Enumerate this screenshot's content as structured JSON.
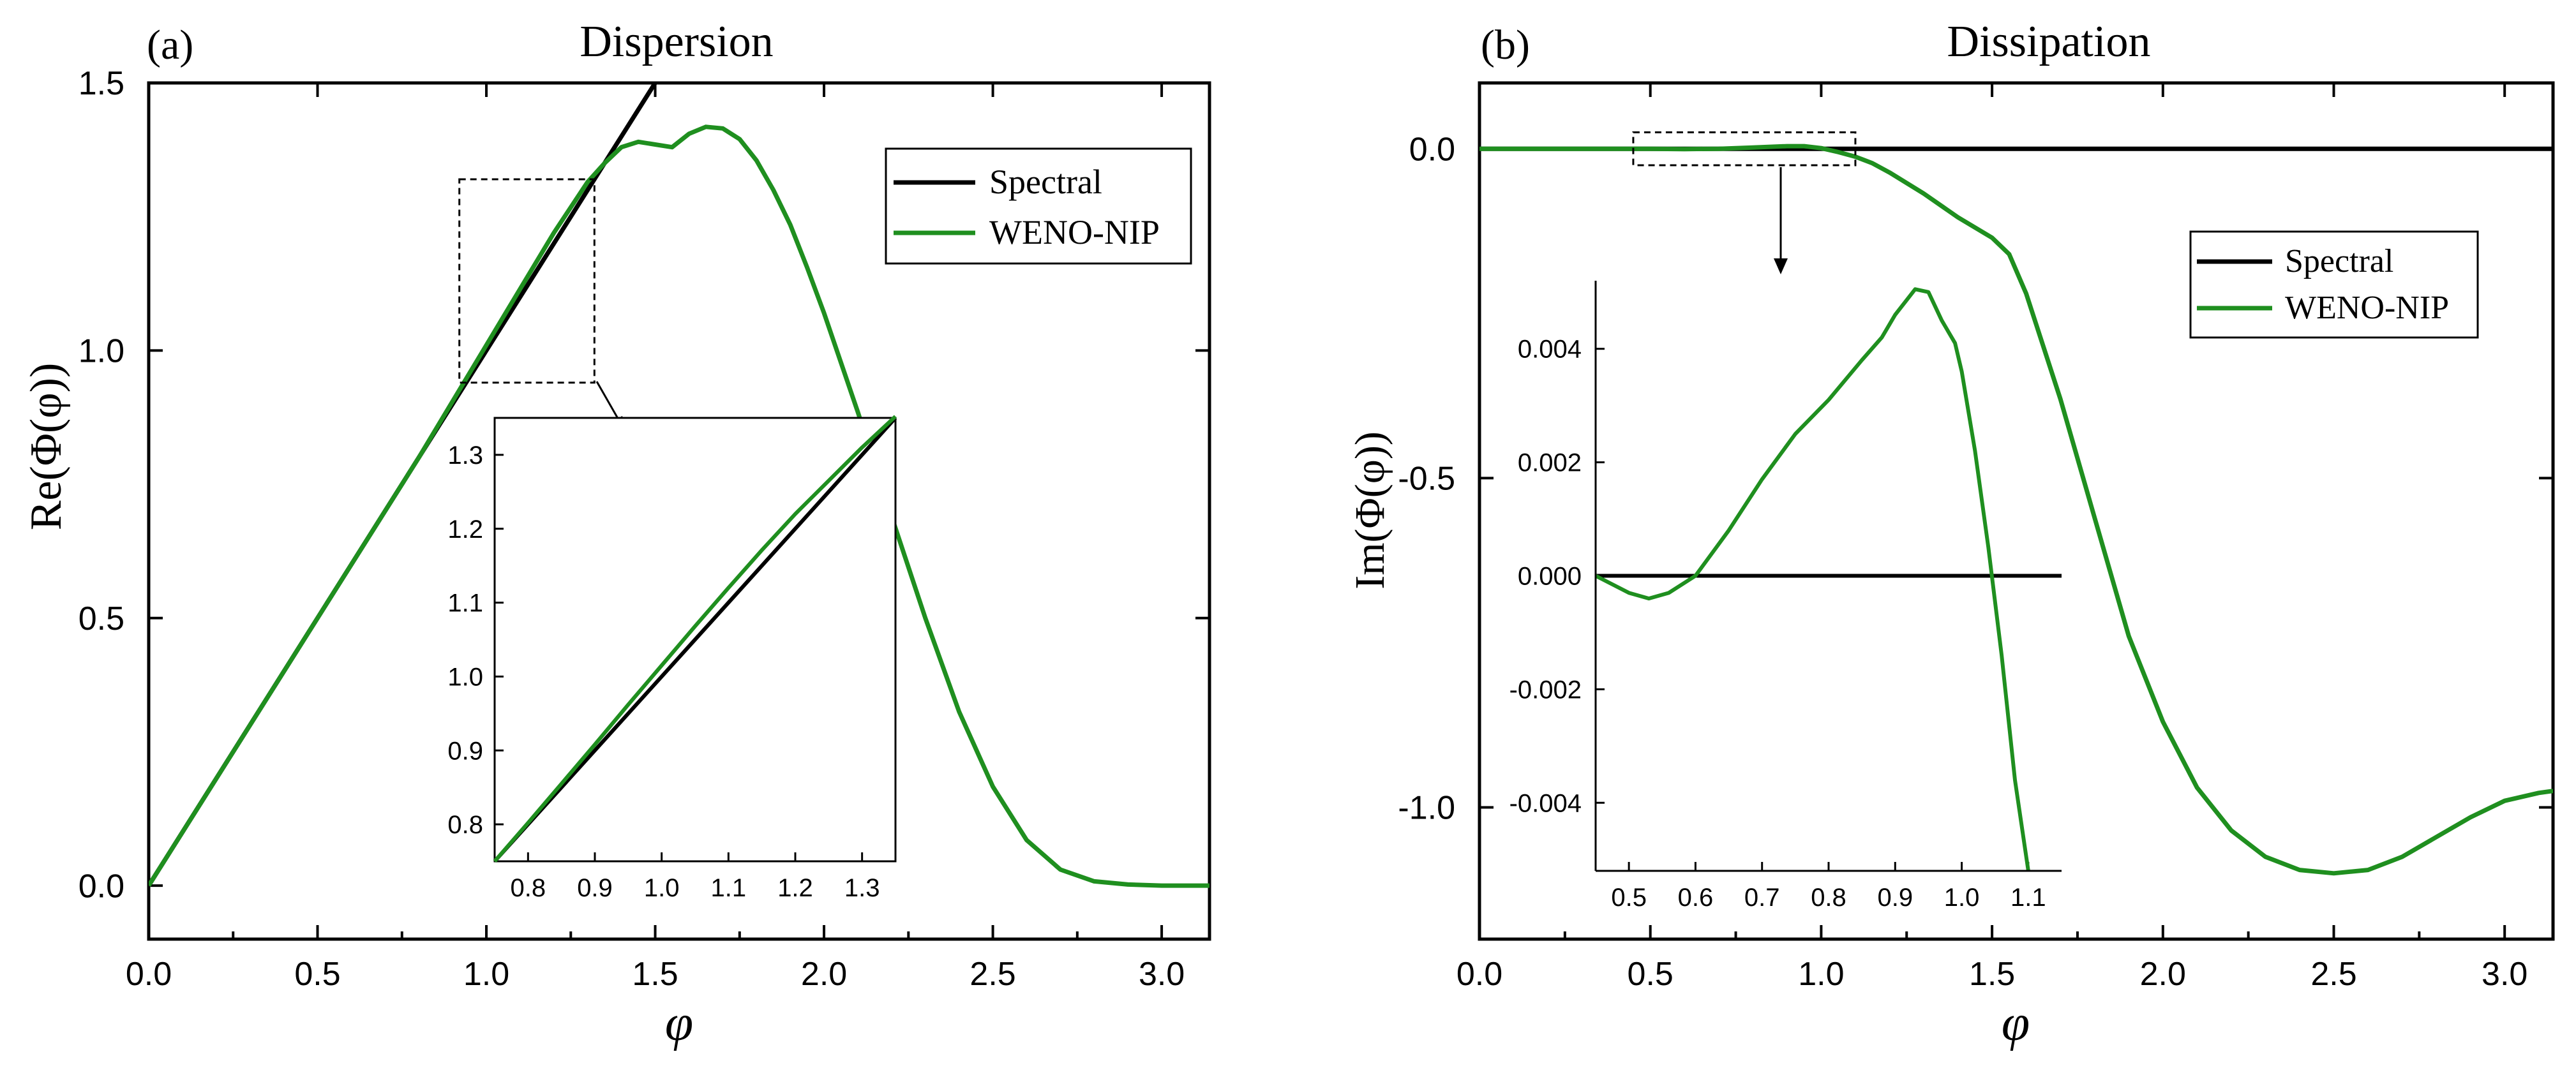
{
  "colors": {
    "spectral": "#000000",
    "weno": "#1f8f1f",
    "axis": "#000000"
  },
  "chart_data": [
    {
      "type": "line",
      "panel_label": "(a)",
      "title": "Dispersion",
      "xlabel": "φ",
      "ylabel": "Re(Φ(φ))",
      "xlim": [
        0,
        3.14159
      ],
      "ylim": [
        -0.1,
        1.5
      ],
      "xticks": [
        0,
        0.5,
        1.0,
        1.5,
        2.0,
        2.5,
        3.0
      ],
      "xtick_labels": [
        "0.0",
        "0.5",
        "1.0",
        "1.5",
        "2.0",
        "2.5",
        "3.0"
      ],
      "yticks": [
        0,
        0.5,
        1.0,
        1.5
      ],
      "ytick_labels": [
        "0.0",
        "0.5",
        "1.0",
        "1.5"
      ],
      "grid": false,
      "legend_position": "top-right",
      "series": [
        {
          "name": "Spectral",
          "color": "#000000",
          "x": [
            0,
            1.5
          ],
          "y": [
            0,
            1.5
          ]
        },
        {
          "name": "WENO-NIP",
          "color": "#1f8f1f",
          "x": [
            0,
            0.2,
            0.4,
            0.6,
            0.8,
            1.0,
            1.1,
            1.2,
            1.3,
            1.35,
            1.4,
            1.45,
            1.5,
            1.55,
            1.6,
            1.65,
            1.7,
            1.75,
            1.8,
            1.85,
            1.9,
            1.95,
            2.0,
            2.1,
            2.2,
            2.3,
            2.4,
            2.5,
            2.6,
            2.7,
            2.8,
            2.9,
            3.0,
            3.05,
            3.1,
            3.14159
          ],
          "y": [
            0,
            0.2,
            0.4,
            0.6,
            0.8,
            1.01,
            1.115,
            1.22,
            1.315,
            1.35,
            1.38,
            1.39,
            1.385,
            1.38,
            1.405,
            1.418,
            1.415,
            1.395,
            1.355,
            1.3,
            1.235,
            1.155,
            1.07,
            0.885,
            0.69,
            0.5,
            0.325,
            0.185,
            0.085,
            0.03,
            0.008,
            0.002,
            0.0,
            0.0,
            0.0,
            0.0
          ]
        }
      ],
      "zoom_box": {
        "x": [
          0.92,
          1.32
        ],
        "y": [
          0.94,
          1.32
        ]
      },
      "inset": {
        "xlim": [
          0.75,
          1.35
        ],
        "ylim": [
          0.75,
          1.35
        ],
        "xticks": [
          0.8,
          0.9,
          1.0,
          1.1,
          1.2,
          1.3
        ],
        "xtick_labels": [
          "0.8",
          "0.9",
          "1.0",
          "1.1",
          "1.2",
          "1.3"
        ],
        "yticks": [
          0.8,
          0.9,
          1.0,
          1.1,
          1.2,
          1.3
        ],
        "ytick_labels": [
          "0.8",
          "0.9",
          "1.0",
          "1.1",
          "1.2",
          "1.3"
        ],
        "series": [
          {
            "name": "Spectral",
            "color": "#000000",
            "x": [
              0.75,
              1.35
            ],
            "y": [
              0.75,
              1.35
            ]
          },
          {
            "name": "WENO-NIP",
            "color": "#1f8f1f",
            "x": [
              0.75,
              0.8,
              0.85,
              0.9,
              0.95,
              1.0,
              1.05,
              1.1,
              1.15,
              1.2,
              1.25,
              1.3,
              1.35
            ],
            "y": [
              0.75,
              0.802,
              0.855,
              0.908,
              0.962,
              1.015,
              1.068,
              1.12,
              1.171,
              1.22,
              1.265,
              1.31,
              1.352
            ]
          }
        ]
      }
    },
    {
      "type": "line",
      "panel_label": "(b)",
      "title": "Dissipation",
      "xlabel": "φ",
      "ylabel": "Im(Φ(φ))",
      "xlim": [
        0,
        3.14159
      ],
      "ylim": [
        -1.2,
        0.1
      ],
      "xticks": [
        0,
        0.5,
        1.0,
        1.5,
        2.0,
        2.5,
        3.0
      ],
      "xtick_labels": [
        "0.0",
        "0.5",
        "1.0",
        "1.5",
        "2.0",
        "2.5",
        "3.0"
      ],
      "yticks": [
        0,
        -0.5,
        -1.0
      ],
      "ytick_labels": [
        "0.0",
        "-0.5",
        "-1.0"
      ],
      "grid": false,
      "legend_position": "top-right",
      "series": [
        {
          "name": "Spectral",
          "color": "#000000",
          "x": [
            0,
            3.14159
          ],
          "y": [
            0,
            0
          ]
        },
        {
          "name": "WENO-NIP",
          "color": "#1f8f1f",
          "x": [
            0,
            0.3,
            0.5,
            0.6,
            0.7,
            0.8,
            0.9,
            0.95,
            1.0,
            1.05,
            1.1,
            1.15,
            1.2,
            1.3,
            1.4,
            1.5,
            1.55,
            1.6,
            1.7,
            1.8,
            1.9,
            2.0,
            2.1,
            2.2,
            2.3,
            2.4,
            2.5,
            2.6,
            2.7,
            2.8,
            2.9,
            3.0,
            3.1,
            3.14159
          ],
          "y": [
            0,
            0,
            0,
            -0.0005,
            0.0,
            0.002,
            0.004,
            0.004,
            0.001,
            -0.005,
            -0.012,
            -0.022,
            -0.036,
            -0.068,
            -0.104,
            -0.135,
            -0.16,
            -0.22,
            -0.38,
            -0.56,
            -0.74,
            -0.87,
            -0.97,
            -1.035,
            -1.075,
            -1.095,
            -1.1,
            -1.095,
            -1.075,
            -1.045,
            -1.015,
            -0.99,
            -0.978,
            -0.975
          ]
        }
      ],
      "zoom_box": {
        "x": [
          0.45,
          1.1
        ],
        "y": [
          -0.025,
          0.025
        ]
      },
      "legend": [
        "Spectral",
        "WENO-NIP"
      ],
      "inset": {
        "xlim": [
          0.45,
          1.15
        ],
        "ylim": [
          -0.0052,
          0.0052
        ],
        "xticks": [
          0.5,
          0.6,
          0.7,
          0.8,
          0.9,
          1.0,
          1.1
        ],
        "xtick_labels": [
          "0.5",
          "0.6",
          "0.7",
          "0.8",
          "0.9",
          "1.0",
          "1.1"
        ],
        "yticks": [
          0.004,
          0.002,
          0.0,
          -0.002,
          -0.004
        ],
        "ytick_labels": [
          "0.004",
          "0.002",
          "0.000",
          "-0.002",
          "-0.004"
        ],
        "series": [
          {
            "name": "Spectral",
            "color": "#000000",
            "x": [
              0.45,
              1.15
            ],
            "y": [
              0,
              0
            ]
          },
          {
            "name": "WENO-NIP",
            "color": "#1f8f1f",
            "x": [
              0.45,
              0.5,
              0.53,
              0.56,
              0.6,
              0.65,
              0.7,
              0.75,
              0.8,
              0.85,
              0.88,
              0.9,
              0.93,
              0.95,
              0.97,
              0.99,
              1.0,
              1.02,
              1.04,
              1.06,
              1.08,
              1.1
            ],
            "y": [
              0.0,
              -0.0003,
              -0.0004,
              -0.0003,
              0.0,
              0.0008,
              0.0017,
              0.0025,
              0.0031,
              0.0038,
              0.0042,
              0.0046,
              0.00505,
              0.005,
              0.0045,
              0.0041,
              0.0036,
              0.0022,
              0.0005,
              -0.0014,
              -0.0036,
              -0.0052
            ]
          }
        ]
      }
    }
  ]
}
